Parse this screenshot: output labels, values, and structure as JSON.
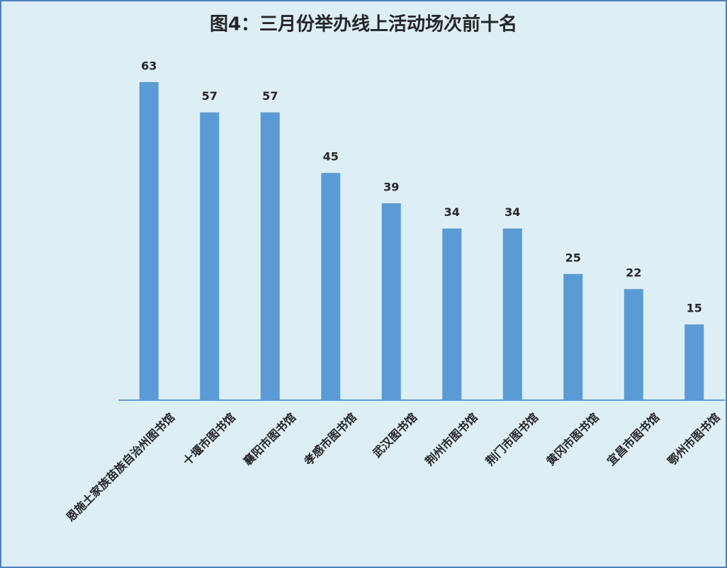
{
  "chart_data": {
    "type": "bar",
    "title": "图4：三月份举办线上活动场次前十名",
    "categories": [
      "恩施土家族苗族自治州图书馆",
      "十堰市图书馆",
      "襄阳市图书馆",
      "孝感市图书馆",
      "武汉图书馆",
      "荆州市图书馆",
      "荆门市图书馆",
      "黄冈市图书馆",
      "宜昌市图书馆",
      "鄂州市图书馆"
    ],
    "values": [
      63,
      57,
      57,
      45,
      39,
      34,
      34,
      25,
      22,
      15
    ],
    "color": "#5b9bd5",
    "ylim": [
      0,
      70
    ]
  }
}
